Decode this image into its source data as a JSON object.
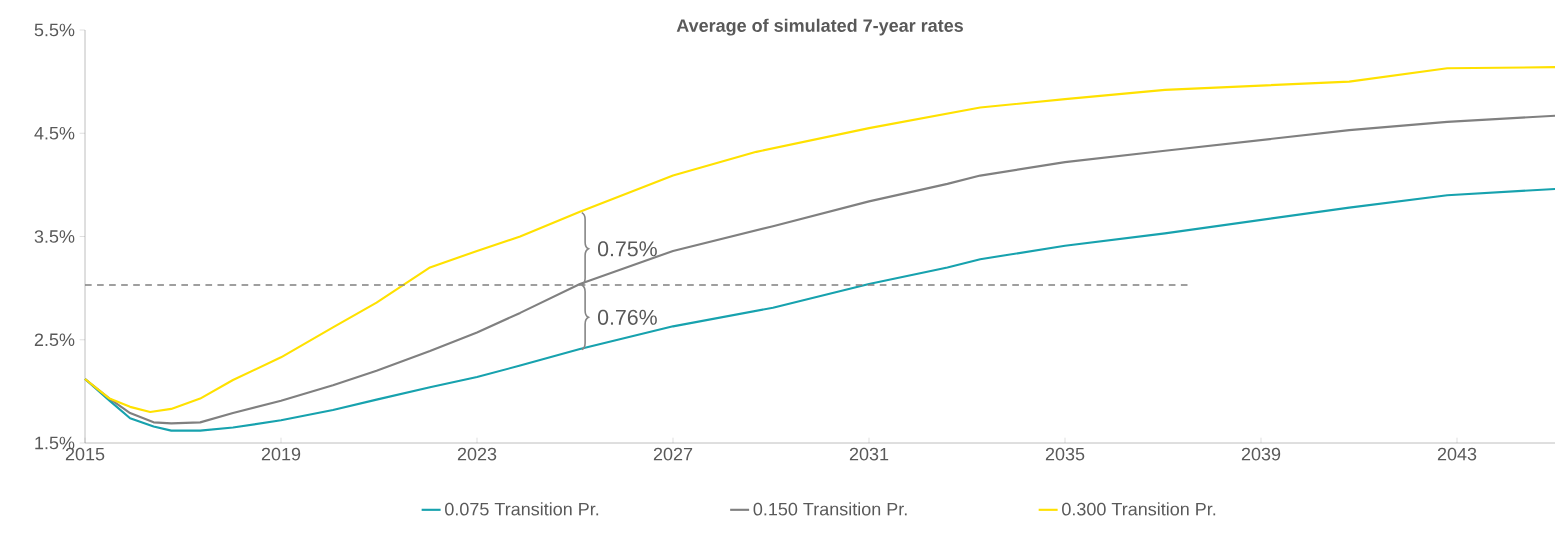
{
  "chart_data": {
    "type": "line",
    "title": "Average of simulated 7-year rates",
    "xlim": [
      2015,
      2045
    ],
    "xticks": [
      2015,
      2019,
      2023,
      2027,
      2031,
      2035,
      2039,
      2043
    ],
    "ylim": [
      1.5,
      5.5
    ],
    "yticks": [
      {
        "value": 1.5,
        "label": "1.5%"
      },
      {
        "value": 2.5,
        "label": "2.5%"
      },
      {
        "value": 3.5,
        "label": "3.5%"
      },
      {
        "value": 4.5,
        "label": "4.5%"
      },
      {
        "value": 5.5,
        "label": "5.5%"
      }
    ],
    "legend": "bottom",
    "marker": "none",
    "series": [
      {
        "name": "0.075 Transition Pr.",
        "color": "#17a2ae",
        "x": [
          2015,
          2015.5,
          2015.92,
          2016.4,
          2016.76,
          2017.35,
          2018.02,
          2019,
          2020.06,
          2020.95,
          2022.04,
          2023,
          2023.88,
          2025.1,
          2027,
          2029.04,
          2031,
          2032.6,
          2033.27,
          2035,
          2037.04,
          2040.8,
          2042.8,
          2045
        ],
        "values": [
          2.12,
          1.91,
          1.74,
          1.66,
          1.62,
          1.62,
          1.65,
          1.72,
          1.82,
          1.92,
          2.04,
          2.14,
          2.25,
          2.41,
          2.63,
          2.81,
          3.04,
          3.2,
          3.28,
          3.41,
          3.53,
          3.78,
          3.9,
          3.96
        ]
      },
      {
        "name": "0.150 Transition Pr.",
        "color": "#808080",
        "x": [
          2015,
          2015.5,
          2015.92,
          2016.4,
          2016.76,
          2017.35,
          2018.02,
          2019,
          2020.06,
          2020.95,
          2022.04,
          2023,
          2023.88,
          2025.1,
          2027,
          2029.04,
          2031,
          2032.6,
          2033.27,
          2035,
          2037.04,
          2040.8,
          2042.8,
          2045
        ],
        "values": [
          2.12,
          1.93,
          1.79,
          1.7,
          1.69,
          1.7,
          1.79,
          1.91,
          2.06,
          2.2,
          2.39,
          2.57,
          2.76,
          3.04,
          3.36,
          3.6,
          3.84,
          4.01,
          4.09,
          4.22,
          4.33,
          4.53,
          4.61,
          4.67
        ]
      },
      {
        "name": "0.300 Transition Pr.",
        "color": "#ffe100",
        "x": [
          2015,
          2015.5,
          2015.92,
          2016.33,
          2016.76,
          2017.35,
          2018.02,
          2019,
          2020.06,
          2020.95,
          2022.04,
          2023,
          2023.88,
          2025.1,
          2027,
          2028.7,
          2031,
          2033.27,
          2035,
          2037.04,
          2040.8,
          2042.8,
          2045
        ],
        "values": [
          2.12,
          1.93,
          1.85,
          1.8,
          1.83,
          1.93,
          2.11,
          2.33,
          2.62,
          2.86,
          3.2,
          3.36,
          3.5,
          3.74,
          4.09,
          4.32,
          4.55,
          4.75,
          4.83,
          4.92,
          5.0,
          5.13,
          5.14
        ]
      },
      {
        "type": "line",
        "line_style": "dashed",
        "color": "#808080",
        "x": [
          2015,
          2037.5
        ],
        "values": [
          3.03,
          3.03
        ]
      }
    ],
    "annotations": [
      "0.75%",
      "0.76%"
    ]
  }
}
